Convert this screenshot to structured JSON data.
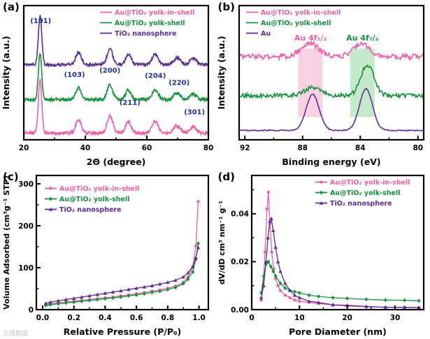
{
  "figure": {
    "watermark": "无限数据",
    "panels": {
      "a": {
        "label": "(a)"
      },
      "b": {
        "label": "(b)"
      },
      "c": {
        "label": "(c)"
      },
      "d": {
        "label": "(d)"
      }
    }
  },
  "colors": {
    "pink": "#ee5fa6",
    "green": "#14923c",
    "purple": "#5b2d91",
    "navy": "#1f2f9f",
    "band_pink": "#f6a3c5",
    "band_green": "#8ed398"
  },
  "chart_data": [
    {
      "id": "a",
      "type": "line",
      "kind": "xrd",
      "xlabel": "2Θ (degree)",
      "ylabel": "Intensity (a.u.)",
      "xlim": [
        20,
        80
      ],
      "xticks": [
        20,
        40,
        60,
        80
      ],
      "xtick_labels": [
        "20",
        "40",
        "60",
        "80"
      ],
      "xticks_minor": [
        30,
        50,
        70
      ],
      "peak_positions": [
        25.3,
        37.8,
        48.0,
        54.0,
        62.7,
        69.8,
        75.1
      ],
      "peak_heights": [
        0.4,
        0.1,
        0.13,
        0.085,
        0.085,
        0.055,
        0.05
      ],
      "peak_sigmas": [
        0.55,
        0.9,
        0.9,
        0.9,
        1.0,
        1.1,
        1.0
      ],
      "peak_labels": [
        {
          "text": "(101)",
          "x": 25.5,
          "y": 0.87
        },
        {
          "text": "(103)",
          "x": 36.5,
          "y": 0.47
        },
        {
          "text": "(200)",
          "x": 48.0,
          "y": 0.5
        },
        {
          "text": "(211)",
          "x": 54.5,
          "y": 0.26
        },
        {
          "text": "(204)",
          "x": 62.8,
          "y": 0.46
        },
        {
          "text": "(220)",
          "x": 70.5,
          "y": 0.41
        },
        {
          "text": "(301)",
          "x": 75.5,
          "y": 0.19
        }
      ],
      "series": [
        {
          "name": "Au@TiO₂ yolk-in-shell",
          "color_key": "pink",
          "offset": 0.05,
          "scale": 1.0,
          "noise": 0.013,
          "seed": 7
        },
        {
          "name": "Au@TiO₂ yolk-shell",
          "color_key": "green",
          "offset": 0.3,
          "scale": 0.85,
          "noise": 0.012,
          "seed": 13
        },
        {
          "name": "TiO₂ nanosphere",
          "color_key": "purple",
          "offset": 0.56,
          "scale": 0.92,
          "noise": 0.011,
          "seed": 29
        }
      ],
      "legend": {
        "position": "top-right"
      }
    },
    {
      "id": "b",
      "type": "line",
      "kind": "xps",
      "xlabel": "Binding energy (eV)",
      "ylabel": "Intensity (a.u.)",
      "xlim": [
        92.4,
        79.6
      ],
      "xticks": [
        92,
        88,
        84,
        80
      ],
      "xtick_labels": [
        "92",
        "88",
        "84",
        "80"
      ],
      "xticks_minor": [
        90,
        86,
        82
      ],
      "bands": [
        {
          "x1": 88.3,
          "x2": 86.6,
          "y_top": 0.68,
          "y_bottom": 0.17,
          "color_key": "band_pink",
          "label": "Au 4f₅/₂",
          "label_color_key": "pink",
          "label_x": 87.45,
          "label_y": 0.74
        },
        {
          "x1": 84.7,
          "x2": 83.0,
          "y_top": 0.68,
          "y_bottom": 0.17,
          "color_key": "band_green",
          "label": "Au 4f₇/₂",
          "label_color_key": "green",
          "label_x": 83.85,
          "label_y": 0.74
        }
      ],
      "series": [
        {
          "name": "Au@TiO₂ yolk-in-shell",
          "color_key": "pink",
          "offset": 0.62,
          "noise": 0.02,
          "seed": 3,
          "peaks": [
            {
              "pos": 87.5,
              "h": 0.1,
              "sigma": 0.6
            },
            {
              "pos": 83.9,
              "h": 0.1,
              "sigma": 0.55
            }
          ]
        },
        {
          "name": "Au@TiO₂ yolk-shell",
          "color_key": "green",
          "offset": 0.33,
          "noise": 0.016,
          "seed": 11,
          "peaks": [
            {
              "pos": 87.3,
              "h": 0.06,
              "sigma": 0.55
            },
            {
              "pos": 83.5,
              "h": 0.23,
              "sigma": 0.45
            }
          ]
        },
        {
          "name": "Au",
          "color_key": "purple",
          "offset": 0.07,
          "noise": 0.004,
          "seed": 17,
          "peaks": [
            {
              "pos": 87.3,
              "h": 0.27,
              "sigma": 0.45
            },
            {
              "pos": 83.6,
              "h": 0.31,
              "sigma": 0.45
            }
          ]
        }
      ],
      "legend": {
        "position": "top-left"
      }
    },
    {
      "id": "c",
      "type": "scatter",
      "xlabel": "Relative Pressure (P/P₀)",
      "ylabel": "Volume Adsorbed (cm³g⁻¹ STP)",
      "xlim": [
        -0.04,
        1.06
      ],
      "ylim": [
        0,
        320
      ],
      "xticks": [
        0.0,
        0.2,
        0.4,
        0.6,
        0.8,
        1.0
      ],
      "xtick_labels": [
        "0.0",
        "0.2",
        "0.4",
        "0.6",
        "0.8",
        "1.0"
      ],
      "xticks_minor": [
        0.1,
        0.3,
        0.5,
        0.7,
        0.9
      ],
      "yticks": [
        0,
        100,
        200,
        300
      ],
      "ytick_labels": [
        "0",
        "100",
        "200",
        "300"
      ],
      "yticks_minor": [
        50,
        150,
        250
      ],
      "x": [
        0.02,
        0.05,
        0.1,
        0.15,
        0.2,
        0.25,
        0.3,
        0.35,
        0.4,
        0.45,
        0.5,
        0.55,
        0.6,
        0.65,
        0.7,
        0.75,
        0.8,
        0.85,
        0.9,
        0.93,
        0.96,
        0.98,
        0.995
      ],
      "series": [
        {
          "name": "Au@TiO₂ yolk-in-shell",
          "color_key": "pink",
          "marker": "circle",
          "y": [
            12,
            14,
            16,
            18,
            20,
            22,
            24,
            26,
            28,
            30,
            33,
            35,
            38,
            41,
            44,
            47,
            51,
            56,
            65,
            78,
            102,
            152,
            258
          ]
        },
        {
          "name": "Au@TiO₂ yolk-shell",
          "color_key": "green",
          "marker": "diamond",
          "y": [
            10,
            12,
            14,
            16,
            18,
            20,
            22,
            24,
            26,
            28,
            30,
            33,
            35,
            38,
            41,
            44,
            48,
            53,
            62,
            73,
            90,
            120,
            158
          ]
        },
        {
          "name": "TiO₂ nanosphere",
          "color_key": "purple",
          "marker": "triangle",
          "y": [
            15,
            18,
            21,
            24,
            27,
            30,
            33,
            36,
            39,
            42,
            45,
            48,
            51,
            54,
            57,
            61,
            65,
            70,
            78,
            88,
            102,
            124,
            148
          ]
        }
      ],
      "legend": {
        "position": "top-left-inset"
      }
    },
    {
      "id": "d",
      "type": "scatter",
      "xlabel": "Pore Diameter (nm)",
      "ylabel": "dV/dD cm³ nm⁻¹ g⁻¹",
      "xlim": [
        0,
        36
      ],
      "ylim": [
        0,
        0.056
      ],
      "xticks": [
        0,
        10,
        20,
        30
      ],
      "xtick_labels": [
        "0",
        "10",
        "20",
        "30"
      ],
      "xticks_minor": [
        5,
        15,
        25,
        35
      ],
      "yticks": [
        0,
        0.02,
        0.04
      ],
      "ytick_labels": [
        "0.00",
        "0.02",
        "0.04"
      ],
      "yticks_minor": [
        0.01,
        0.03,
        0.05
      ],
      "series": [
        {
          "name": "Au@TiO₂ yolk-in-shell",
          "color_key": "pink",
          "marker": "circle",
          "x": [
            2,
            2.4,
            2.8,
            3.2,
            3.5,
            3.8,
            4.2,
            4.6,
            5,
            5.5,
            6,
            7,
            8,
            9,
            10,
            12,
            14,
            17,
            20,
            24,
            28,
            32,
            35
          ],
          "y": [
            0.004,
            0.01,
            0.024,
            0.042,
            0.049,
            0.036,
            0.024,
            0.017,
            0.013,
            0.01,
            0.008,
            0.006,
            0.005,
            0.004,
            0.0035,
            0.003,
            0.0025,
            0.002,
            0.0015,
            0.0012,
            0.001,
            0.0009,
            0.0008
          ]
        },
        {
          "name": "Au@TiO₂ yolk-shell",
          "color_key": "green",
          "marker": "diamond",
          "x": [
            2,
            2.5,
            3,
            3.5,
            4,
            4.5,
            5,
            6,
            7,
            8,
            9,
            10,
            12,
            14,
            17,
            20,
            24,
            28,
            32,
            35
          ],
          "y": [
            0.007,
            0.014,
            0.019,
            0.02,
            0.018,
            0.016,
            0.014,
            0.011,
            0.009,
            0.008,
            0.0075,
            0.007,
            0.006,
            0.0055,
            0.005,
            0.0047,
            0.0043,
            0.004,
            0.0039,
            0.0037
          ]
        },
        {
          "name": "TiO₂ nanosphere",
          "color_key": "purple",
          "marker": "triangle",
          "x": [
            2,
            2.5,
            3,
            3.4,
            3.8,
            4.1,
            4.5,
            5,
            5.5,
            6,
            7,
            8,
            9,
            10,
            12,
            14,
            17,
            20,
            24,
            28,
            32,
            35
          ],
          "y": [
            0.005,
            0.01,
            0.02,
            0.03,
            0.037,
            0.038,
            0.033,
            0.026,
            0.02,
            0.016,
            0.011,
            0.008,
            0.006,
            0.005,
            0.0035,
            0.003,
            0.002,
            0.0018,
            0.0013,
            0.001,
            0.001,
            0.0009
          ]
        }
      ],
      "legend": {
        "position": "top-right"
      }
    }
  ]
}
